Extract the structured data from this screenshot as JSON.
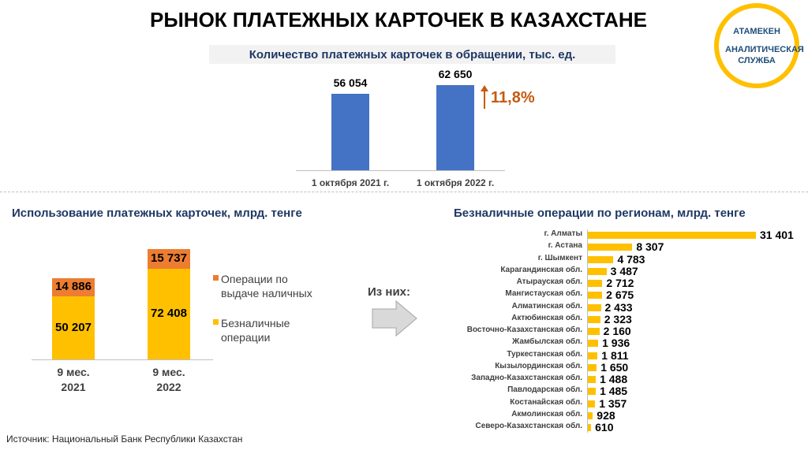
{
  "title": "РЫНОК ПЛАТЕЖНЫХ КАРТОЧЕК В КАЗАХСТАНЕ",
  "logo": {
    "brand": "АТАМЕКЕН",
    "service": "АНАЛИТИЧЕСКАЯ СЛУЖБА"
  },
  "arrow_label": "Из них:",
  "source": "Источник: Национальный Банк Республики Казахстан",
  "chart_data": [
    {
      "type": "bar",
      "title": "Количество платежных карточек в обращении, тыс. ед.",
      "categories": [
        "1 октября 2021 г.",
        "1 октября 2022 г."
      ],
      "values": [
        56054,
        62650
      ],
      "value_labels": [
        "56 054",
        "62 650"
      ],
      "color": "#4472c4",
      "annotation": "11,8%"
    },
    {
      "type": "stacked-bar",
      "title": "Использование платежных карточек, млрд. тенге",
      "categories": [
        "9 мес. 2021",
        "9 мес. 2022"
      ],
      "series": [
        {
          "name": "Безналичные операции",
          "color": "#ffc000",
          "values": [
            50207,
            72408
          ],
          "value_labels": [
            "50 207",
            "72 408"
          ]
        },
        {
          "name": "Операции по выдаче наличных",
          "color": "#ed7d31",
          "values": [
            14886,
            15737
          ],
          "value_labels": [
            "14 886",
            "15 737"
          ]
        }
      ]
    },
    {
      "type": "hbar",
      "title": "Безналичные операции по регионам, млрд. тенге",
      "categories": [
        "г. Алматы",
        "г. Астана",
        "г. Шымкент",
        "Карагандинская обл.",
        "Атырауская обл.",
        "Мангистауская обл.",
        "Алматинская обл.",
        "Актюбинская обл.",
        "Восточно-Казахстанская обл.",
        "Жамбылская обл.",
        "Туркестанская обл.",
        "Кызылординская обл.",
        "Западно-Казахстанская обл.",
        "Павлодарская обл.",
        "Костанайская обл.",
        "Акмолинская обл.",
        "Северо-Казахстанская обл."
      ],
      "values": [
        31401,
        8307,
        4783,
        3487,
        2712,
        2675,
        2433,
        2323,
        2160,
        1936,
        1811,
        1650,
        1488,
        1485,
        1357,
        928,
        610
      ],
      "value_labels": [
        "31 401",
        "8 307",
        "4 783",
        "3 487",
        "2 712",
        "2 675",
        "2 433",
        "2 323",
        "2 160",
        "1 936",
        "1 811",
        "1 650",
        "1 488",
        "1 485",
        "1 357",
        "928",
        "610"
      ],
      "color": "#ffc000"
    }
  ]
}
